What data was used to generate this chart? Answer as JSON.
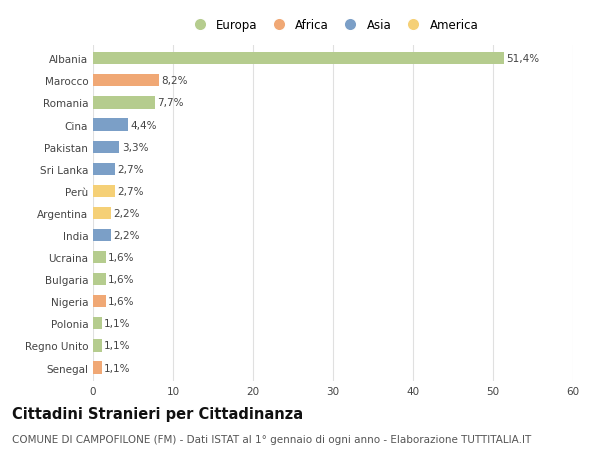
{
  "countries": [
    "Albania",
    "Marocco",
    "Romania",
    "Cina",
    "Pakistan",
    "Sri Lanka",
    "Perù",
    "Argentina",
    "India",
    "Ucraina",
    "Bulgaria",
    "Nigeria",
    "Polonia",
    "Regno Unito",
    "Senegal"
  ],
  "values": [
    51.4,
    8.2,
    7.7,
    4.4,
    3.3,
    2.7,
    2.7,
    2.2,
    2.2,
    1.6,
    1.6,
    1.6,
    1.1,
    1.1,
    1.1
  ],
  "labels": [
    "51,4%",
    "8,2%",
    "7,7%",
    "4,4%",
    "3,3%",
    "2,7%",
    "2,7%",
    "2,2%",
    "2,2%",
    "1,6%",
    "1,6%",
    "1,6%",
    "1,1%",
    "1,1%",
    "1,1%"
  ],
  "continents": [
    "Europa",
    "Africa",
    "Europa",
    "Asia",
    "Asia",
    "Asia",
    "America",
    "America",
    "Asia",
    "Europa",
    "Europa",
    "Africa",
    "Europa",
    "Europa",
    "Africa"
  ],
  "continent_colors": {
    "Europa": "#b5cc8e",
    "Africa": "#f0a875",
    "Asia": "#7b9fc7",
    "America": "#f5d077"
  },
  "legend_order": [
    "Europa",
    "Africa",
    "Asia",
    "America"
  ],
  "bar_height": 0.55,
  "xlim": [
    0,
    60
  ],
  "xticks": [
    0,
    10,
    20,
    30,
    40,
    50,
    60
  ],
  "title": "Cittadini Stranieri per Cittadinanza",
  "subtitle": "COMUNE DI CAMPOFILONE (FM) - Dati ISTAT al 1° gennaio di ogni anno - Elaborazione TUTTITALIA.IT",
  "background_color": "#ffffff",
  "grid_color": "#e0e0e0",
  "title_fontsize": 10.5,
  "subtitle_fontsize": 7.5,
  "label_fontsize": 7.5,
  "tick_fontsize": 7.5,
  "legend_fontsize": 8.5
}
